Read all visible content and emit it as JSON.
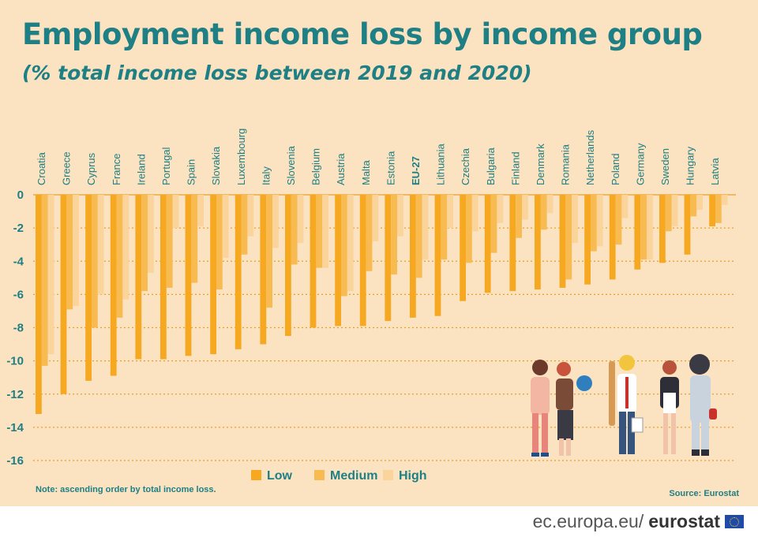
{
  "title": "Employment income loss by income group",
  "subtitle": "(% total income loss between 2019 and 2020)",
  "note": "Note: ascending order by total income loss.",
  "source": "Source: Eurostat",
  "footer": {
    "prefix": "ec.europa.eu/",
    "brand": "eurostat"
  },
  "colors": {
    "background": "#fbe2c0",
    "text": "#1e7f84",
    "low": "#f6a821",
    "medium": "#f8bb52",
    "high": "#fad49a",
    "grid": "#e5a12a"
  },
  "chart_data": {
    "type": "bar",
    "categories": [
      "Croatia",
      "Greece",
      "Cyprus",
      "France",
      "Ireland",
      "Portugal",
      "Spain",
      "Slovakia",
      "Luxembourg",
      "Italy",
      "Slovenia",
      "Belgium",
      "Austria",
      "Malta",
      "Estonia",
      "EU-27",
      "Lithuania",
      "Czechia",
      "Bulgaria",
      "Finland",
      "Denmark",
      "Romania",
      "Netherlands",
      "Poland",
      "Germany",
      "Sweden",
      "Hungary",
      "Latvia"
    ],
    "series": [
      {
        "name": "Low",
        "values": [
          -13.2,
          -12,
          -11.2,
          -10.9,
          -9.9,
          -9.9,
          -9.7,
          -9.6,
          -9.3,
          -9,
          -8.5,
          -8,
          -7.9,
          -7.9,
          -7.6,
          -7.4,
          -7.3,
          -6.4,
          -5.9,
          -5.8,
          -5.7,
          -5.6,
          -5.4,
          -5.1,
          -4.5,
          -4.1,
          -3.6,
          -1.9
        ]
      },
      {
        "name": "Medium",
        "values": [
          -10.3,
          -6.9,
          -8,
          -7.4,
          -5.8,
          -5.6,
          -5.3,
          -5.7,
          -3.6,
          -6.8,
          -4.2,
          -4.4,
          -6.1,
          -4.6,
          -4.8,
          -5,
          -3.9,
          -4.1,
          -3.5,
          -2.6,
          -2.1,
          -5.1,
          -3.4,
          -3,
          -3.9,
          -2.2,
          -1.3,
          -1.7
        ]
      },
      {
        "name": "High",
        "values": [
          -9.6,
          -6.7,
          -6,
          -6.3,
          -4.7,
          -2,
          -1.9,
          -3.8,
          -2.5,
          -3.2,
          -2.9,
          -4.4,
          -5.8,
          -2.8,
          -2.5,
          -3.9,
          -2,
          -2.2,
          -1.7,
          -1.5,
          -1.1,
          -2.9,
          -3.1,
          -1.4,
          -3.9,
          -1.9,
          -0.9,
          -0.6
        ]
      }
    ],
    "ylim": [
      -16,
      0
    ],
    "yticks": [
      0,
      -2,
      -4,
      -6,
      -8,
      -10,
      -12,
      -14,
      -16
    ],
    "legend_position": "bottom",
    "grid": "horizontal dotted"
  }
}
